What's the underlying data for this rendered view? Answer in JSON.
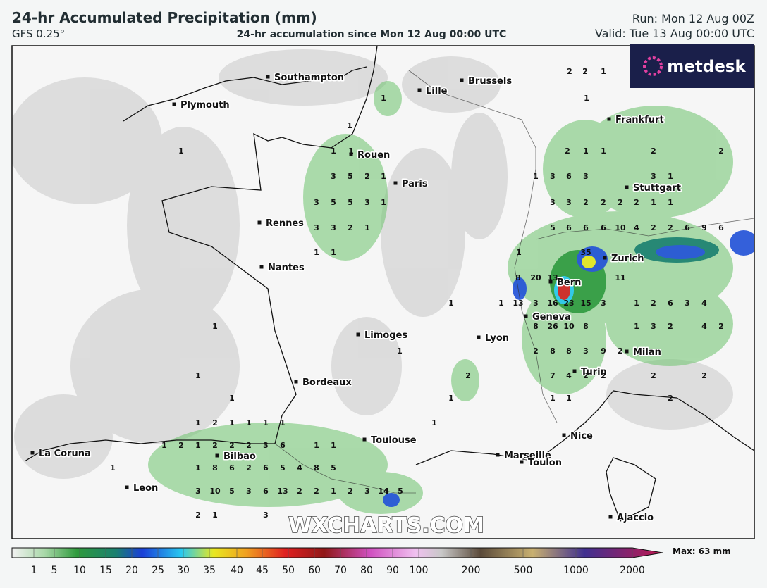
{
  "header": {
    "title": "24-hr Accumulated Precipitation (mm)",
    "model": "GFS 0.25°",
    "subtitle": "24-hr accumulation since Mon 12 Aug 00:00 UTC",
    "run": "Run: Mon 12 Aug 00Z",
    "valid": "Valid: Tue 13 Aug 00:00 UTC"
  },
  "logo": "metdesk",
  "watermark": "WXCHARTS.COM",
  "cities": [
    "Southampton",
    "Brussels",
    "Lille",
    "Plymouth",
    "Frankfurt",
    "Rouen",
    "Paris",
    "Stuttgart",
    "Rennes",
    "Zurich",
    "Nantes",
    "Bern",
    "Geneva",
    "Limoges",
    "Lyon",
    "Milan",
    "Turin",
    "Bordeaux",
    "Toulouse",
    "Nice",
    "La Coruna",
    "Bilbao",
    "Marseille",
    "Toulon",
    "Leon",
    "Ajaccio"
  ],
  "precip_labels": [
    2,
    2,
    1,
    1,
    1,
    1,
    1,
    1,
    2,
    1,
    1,
    2,
    2,
    1,
    3,
    5,
    2,
    1,
    1,
    3,
    6,
    3,
    3,
    1,
    3,
    5,
    5,
    3,
    1,
    3,
    3,
    2,
    2,
    2,
    2,
    1,
    1,
    3,
    3,
    2,
    1,
    5,
    6,
    6,
    6,
    10,
    4,
    2,
    2,
    6,
    9,
    6,
    1,
    1,
    1,
    35,
    11,
    8,
    20,
    13,
    23,
    15,
    3,
    1,
    13,
    3,
    16,
    1,
    1,
    2,
    6,
    3,
    4,
    1,
    8,
    26,
    10,
    8,
    1,
    3,
    2,
    4,
    2,
    1,
    2,
    8,
    8,
    3,
    9,
    2,
    1,
    2,
    7,
    4,
    2,
    2,
    2,
    2,
    1,
    1,
    1,
    1,
    2,
    1,
    2,
    1,
    1,
    1,
    1,
    1,
    1,
    2,
    1,
    2,
    2,
    2,
    3,
    6,
    1,
    1,
    1,
    1,
    8,
    6,
    2,
    6,
    5,
    4,
    8,
    5,
    3,
    10,
    5,
    3,
    6,
    13,
    2,
    2,
    1,
    2,
    3,
    14,
    5,
    2,
    1,
    3
  ],
  "colorbar": {
    "ticks": [
      1,
      5,
      10,
      15,
      20,
      25,
      30,
      35,
      40,
      45,
      50,
      60,
      70,
      80,
      90,
      100,
      200,
      500,
      1000,
      2000
    ],
    "max_label": "Max: 63 mm"
  }
}
